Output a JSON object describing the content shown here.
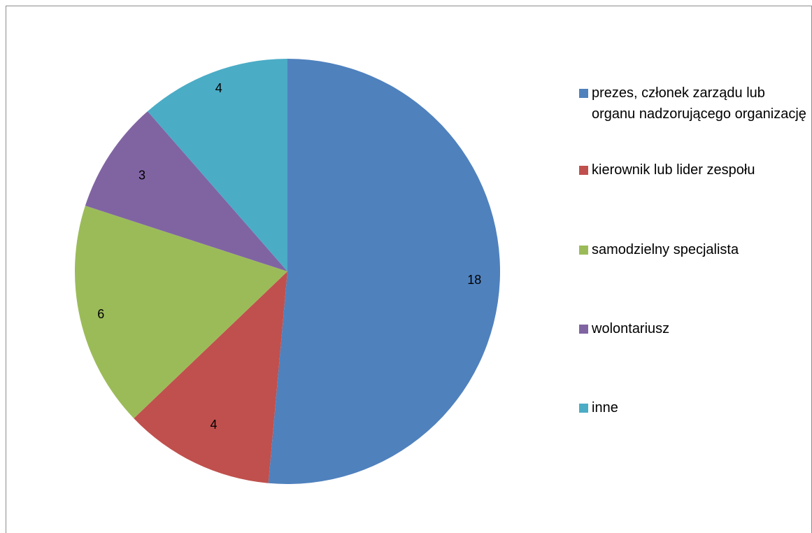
{
  "chart_data": {
    "type": "pie",
    "categories": [
      "prezes, członek zarządu lub organu nadzorującego organizację",
      "kierownik lub lider zespołu",
      "samodzielny specjalista",
      "wolontariusz",
      "inne"
    ],
    "values": [
      18,
      4,
      6,
      3,
      4
    ],
    "data_labels": [
      "18",
      "4",
      "6",
      "3",
      "4"
    ],
    "colors": [
      "#4F81BD",
      "#C0504D",
      "#9BBB59",
      "#8064A2",
      "#4BACC6"
    ],
    "title": "",
    "legend_position": "right",
    "start_angle": "12 o'clock",
    "direction": "clockwise"
  }
}
